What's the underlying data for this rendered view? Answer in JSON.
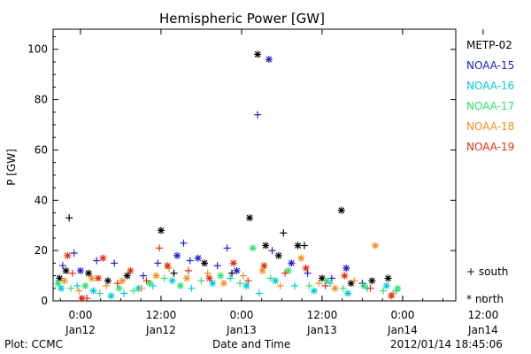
{
  "chart_data": {
    "type": "scatter",
    "title": "Hemispheric Power [GW]",
    "ylabel": "P [GW]",
    "xlabel": "Date and Time",
    "ylim": [
      0,
      108
    ],
    "xlim": [
      -0.17,
      2.33
    ],
    "y_ticks": [
      0,
      20,
      40,
      60,
      80,
      100
    ],
    "x_ticks": [
      {
        "x": 0.0,
        "time": "0:00",
        "date": "Jan12"
      },
      {
        "x": 0.5,
        "time": "12:00",
        "date": "Jan12"
      },
      {
        "x": 1.0,
        "time": "0:00",
        "date": "Jan13"
      },
      {
        "x": 1.5,
        "time": "12:00",
        "date": "Jan13"
      },
      {
        "x": 2.0,
        "time": "0:00",
        "date": "Jan14"
      },
      {
        "x": 2.5,
        "time": "12:00",
        "date": "Jan14"
      }
    ],
    "x_unit_note": "days since 2012-01-12 00:00",
    "series": [
      {
        "name": "METP-02",
        "color": "#000000",
        "points": [
          {
            "x": -0.13,
            "y": 9,
            "m": "*"
          },
          {
            "x": -0.09,
            "y": 12,
            "m": "*"
          },
          {
            "x": -0.07,
            "y": 33,
            "m": "+"
          },
          {
            "x": 0.05,
            "y": 11,
            "m": "*"
          },
          {
            "x": 0.17,
            "y": 8,
            "m": "*"
          },
          {
            "x": 0.29,
            "y": 10,
            "m": "*"
          },
          {
            "x": 0.5,
            "y": 28,
            "m": "*"
          },
          {
            "x": 0.58,
            "y": 11,
            "m": "+"
          },
          {
            "x": 0.77,
            "y": 15,
            "m": "*"
          },
          {
            "x": 0.94,
            "y": 11,
            "m": "+"
          },
          {
            "x": 1.05,
            "y": 33,
            "m": "*"
          },
          {
            "x": 1.1,
            "y": 98,
            "m": "*"
          },
          {
            "x": 1.15,
            "y": 22,
            "m": "*"
          },
          {
            "x": 1.23,
            "y": 18,
            "m": "*"
          },
          {
            "x": 1.26,
            "y": 27,
            "m": "+"
          },
          {
            "x": 1.35,
            "y": 22,
            "m": "*"
          },
          {
            "x": 1.39,
            "y": 22,
            "m": "+"
          },
          {
            "x": 1.5,
            "y": 9,
            "m": "*"
          },
          {
            "x": 1.62,
            "y": 36,
            "m": "*"
          },
          {
            "x": 1.68,
            "y": 7,
            "m": "*"
          },
          {
            "x": 1.81,
            "y": 8,
            "m": "*"
          },
          {
            "x": 1.91,
            "y": 9,
            "m": "*"
          }
        ]
      },
      {
        "name": "NOAA-15",
        "color": "#2020c8",
        "points": [
          {
            "x": -0.11,
            "y": 14,
            "m": "+"
          },
          {
            "x": -0.04,
            "y": 19,
            "m": "+"
          },
          {
            "x": 0.0,
            "y": 12,
            "m": "*"
          },
          {
            "x": 0.1,
            "y": 16,
            "m": "+"
          },
          {
            "x": 0.21,
            "y": 15,
            "m": "+"
          },
          {
            "x": 0.39,
            "y": 10,
            "m": "+"
          },
          {
            "x": 0.48,
            "y": 15,
            "m": "+"
          },
          {
            "x": 0.6,
            "y": 18,
            "m": "*"
          },
          {
            "x": 0.64,
            "y": 23,
            "m": "+"
          },
          {
            "x": 0.68,
            "y": 16,
            "m": "+"
          },
          {
            "x": 0.73,
            "y": 17,
            "m": "*"
          },
          {
            "x": 0.85,
            "y": 14,
            "m": "+"
          },
          {
            "x": 0.91,
            "y": 21,
            "m": "+"
          },
          {
            "x": 0.97,
            "y": 12,
            "m": "*"
          },
          {
            "x": 1.1,
            "y": 74,
            "m": "+"
          },
          {
            "x": 1.17,
            "y": 96,
            "m": "*"
          },
          {
            "x": 1.19,
            "y": 20,
            "m": "+"
          },
          {
            "x": 1.31,
            "y": 15,
            "m": "*"
          },
          {
            "x": 1.41,
            "y": 11,
            "m": "+"
          },
          {
            "x": 1.56,
            "y": 9,
            "m": "+"
          },
          {
            "x": 1.65,
            "y": 13,
            "m": "*"
          },
          {
            "x": 1.75,
            "y": 7,
            "m": "+"
          }
        ]
      },
      {
        "name": "NOAA-16",
        "color": "#00c8dc",
        "points": [
          {
            "x": -0.12,
            "y": 5,
            "m": "*"
          },
          {
            "x": -0.02,
            "y": 6,
            "m": "+"
          },
          {
            "x": 0.08,
            "y": 4,
            "m": "*"
          },
          {
            "x": 0.19,
            "y": 2,
            "m": "*"
          },
          {
            "x": 0.27,
            "y": 3,
            "m": "+"
          },
          {
            "x": 0.36,
            "y": 5,
            "m": "*"
          },
          {
            "x": 0.45,
            "y": 6,
            "m": "+"
          },
          {
            "x": 0.57,
            "y": 8,
            "m": "*"
          },
          {
            "x": 0.69,
            "y": 5,
            "m": "+"
          },
          {
            "x": 0.82,
            "y": 7,
            "m": "*"
          },
          {
            "x": 0.93,
            "y": 9,
            "m": "+"
          },
          {
            "x": 1.03,
            "y": 6,
            "m": "*"
          },
          {
            "x": 1.11,
            "y": 3,
            "m": "+"
          },
          {
            "x": 1.21,
            "y": 8,
            "m": "*"
          },
          {
            "x": 1.33,
            "y": 6,
            "m": "+"
          },
          {
            "x": 1.45,
            "y": 4,
            "m": "*"
          },
          {
            "x": 1.55,
            "y": 7,
            "m": "+"
          },
          {
            "x": 1.66,
            "y": 3,
            "m": "*"
          },
          {
            "x": 1.78,
            "y": 5,
            "m": "+"
          },
          {
            "x": 1.9,
            "y": 6,
            "m": "*"
          },
          {
            "x": 1.96,
            "y": 4,
            "m": "+"
          }
        ]
      },
      {
        "name": "NOAA-17",
        "color": "#30e070",
        "points": [
          {
            "x": -0.14,
            "y": 7,
            "m": "*"
          },
          {
            "x": -0.06,
            "y": 5,
            "m": "+"
          },
          {
            "x": 0.03,
            "y": 6,
            "m": "*"
          },
          {
            "x": 0.12,
            "y": 3,
            "m": "+"
          },
          {
            "x": 0.24,
            "y": 5,
            "m": "*"
          },
          {
            "x": 0.33,
            "y": 4,
            "m": "+"
          },
          {
            "x": 0.43,
            "y": 7,
            "m": "*"
          },
          {
            "x": 0.52,
            "y": 9,
            "m": "+"
          },
          {
            "x": 0.62,
            "y": 6,
            "m": "*"
          },
          {
            "x": 0.75,
            "y": 8,
            "m": "+"
          },
          {
            "x": 0.87,
            "y": 10,
            "m": "*"
          },
          {
            "x": 0.99,
            "y": 7,
            "m": "+"
          },
          {
            "x": 1.07,
            "y": 21,
            "m": "*"
          },
          {
            "x": 1.18,
            "y": 9,
            "m": "+"
          },
          {
            "x": 1.29,
            "y": 12,
            "m": "*"
          },
          {
            "x": 1.42,
            "y": 6,
            "m": "+"
          },
          {
            "x": 1.53,
            "y": 8,
            "m": "*"
          },
          {
            "x": 1.63,
            "y": 5,
            "m": "+"
          },
          {
            "x": 1.76,
            "y": 6,
            "m": "*"
          },
          {
            "x": 1.88,
            "y": 4,
            "m": "+"
          },
          {
            "x": 1.97,
            "y": 5,
            "m": "*"
          }
        ]
      },
      {
        "name": "NOAA-18",
        "color": "#f09020",
        "points": [
          {
            "x": -0.1,
            "y": 8,
            "m": "*"
          },
          {
            "x": -0.01,
            "y": 4,
            "m": "+"
          },
          {
            "x": 0.07,
            "y": 9,
            "m": "*"
          },
          {
            "x": 0.16,
            "y": 6,
            "m": "+"
          },
          {
            "x": 0.26,
            "y": 8,
            "m": "*"
          },
          {
            "x": 0.38,
            "y": 5,
            "m": "+"
          },
          {
            "x": 0.47,
            "y": 10,
            "m": "*"
          },
          {
            "x": 0.55,
            "y": 13,
            "m": "+"
          },
          {
            "x": 0.66,
            "y": 9,
            "m": "*"
          },
          {
            "x": 0.79,
            "y": 11,
            "m": "+"
          },
          {
            "x": 0.89,
            "y": 7,
            "m": "*"
          },
          {
            "x": 1.01,
            "y": 10,
            "m": "+"
          },
          {
            "x": 1.13,
            "y": 12,
            "m": "*"
          },
          {
            "x": 1.24,
            "y": 6,
            "m": "+"
          },
          {
            "x": 1.37,
            "y": 17,
            "m": "*"
          },
          {
            "x": 1.48,
            "y": 7,
            "m": "+"
          },
          {
            "x": 1.58,
            "y": 5,
            "m": "*"
          },
          {
            "x": 1.7,
            "y": 8,
            "m": "+"
          },
          {
            "x": 1.83,
            "y": 22,
            "m": "*"
          },
          {
            "x": 1.94,
            "y": 3,
            "m": "+"
          }
        ]
      },
      {
        "name": "NOAA-19",
        "color": "#e03010",
        "points": [
          {
            "x": -0.08,
            "y": 18,
            "m": "*"
          },
          {
            "x": -0.05,
            "y": 11,
            "m": "+"
          },
          {
            "x": 0.01,
            "y": 1,
            "m": "*"
          },
          {
            "x": 0.04,
            "y": 1,
            "m": "+"
          },
          {
            "x": 0.11,
            "y": 9,
            "m": "*"
          },
          {
            "x": 0.14,
            "y": 17,
            "m": "*"
          },
          {
            "x": 0.23,
            "y": 7,
            "m": "+"
          },
          {
            "x": 0.31,
            "y": 12,
            "m": "*"
          },
          {
            "x": 0.41,
            "y": 8,
            "m": "+"
          },
          {
            "x": 0.49,
            "y": 21,
            "m": "+"
          },
          {
            "x": 0.54,
            "y": 14,
            "m": "*"
          },
          {
            "x": 0.67,
            "y": 12,
            "m": "+"
          },
          {
            "x": 0.8,
            "y": 9,
            "m": "*"
          },
          {
            "x": 0.95,
            "y": 15,
            "m": "*"
          },
          {
            "x": 1.04,
            "y": 8,
            "m": "+"
          },
          {
            "x": 1.14,
            "y": 14,
            "m": "*"
          },
          {
            "x": 1.27,
            "y": 11,
            "m": "+"
          },
          {
            "x": 1.4,
            "y": 13,
            "m": "*"
          },
          {
            "x": 1.52,
            "y": 6,
            "m": "+"
          },
          {
            "x": 1.64,
            "y": 10,
            "m": "*"
          },
          {
            "x": 1.8,
            "y": 5,
            "m": "+"
          },
          {
            "x": 1.93,
            "y": 2,
            "m": "*"
          }
        ]
      }
    ],
    "symbol_legend": [
      {
        "symbol": "+",
        "label": "south"
      },
      {
        "symbol": "*",
        "label": "north"
      }
    ]
  },
  "footer": {
    "source": "Plot: CCMC",
    "timestamp": "2012/01/14 18:45:06"
  }
}
